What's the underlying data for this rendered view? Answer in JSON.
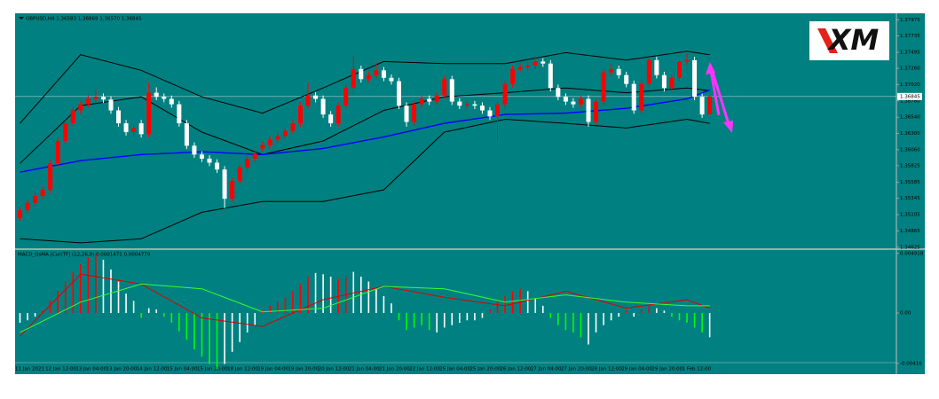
{
  "logo": "XM",
  "chart_data": [
    {
      "type": "candlestick",
      "title": "GBPUSD,H4  1.36583 1.36869 1.36570 1.36845",
      "categories": [
        "11 Jan 2021",
        null,
        null,
        null,
        "12 Jan 12:00",
        null,
        null,
        null,
        "13 Jan 04:00",
        null,
        null,
        null,
        "13 Jan 20:00",
        null,
        null,
        null,
        "14 Jan 12:00",
        null,
        null,
        null,
        "15 Jan 04:00",
        null,
        null,
        null,
        "15 Jan 20:00",
        null,
        null,
        null,
        "18 Jan 12:00",
        null,
        null,
        null,
        "19 Jan 04:00",
        null,
        null,
        null,
        "19 Jan 20:00",
        null,
        null,
        null,
        "20 Jan 12:00",
        null,
        null,
        null,
        "21 Jan 04:00",
        null,
        null,
        null,
        "21 Jan 20:00",
        null,
        null,
        null,
        "22 Jan 12:00",
        null,
        null,
        null,
        "25 Jan 04:00",
        null,
        null,
        null,
        "25 Jan 20:00",
        null,
        null,
        null,
        "26 Jan 12:00",
        null,
        null,
        null,
        "27 Jan 04:00",
        null,
        null,
        null,
        "27 Jan 20:00",
        null,
        null,
        null,
        "28 Jan 12:00",
        null,
        null,
        null,
        "29 Jan 04:00",
        null,
        null,
        null,
        "29 Jan 20:00",
        null,
        null,
        null,
        "1 Feb 12:00",
        null,
        null,
        null
      ],
      "ohlc": [
        [
          1.3505,
          1.3522,
          1.35,
          1.3517
        ],
        [
          1.3517,
          1.3533,
          1.3512,
          1.3528
        ],
        [
          1.3528,
          1.3543,
          1.3523,
          1.3538
        ],
        [
          1.3538,
          1.3552,
          1.3533,
          1.3547
        ],
        [
          1.3547,
          1.3591,
          1.3542,
          1.3586
        ],
        [
          1.3586,
          1.3624,
          1.3581,
          1.3619
        ],
        [
          1.3619,
          1.365,
          1.3614,
          1.3645
        ],
        [
          1.3645,
          1.3669,
          1.364,
          1.3664
        ],
        [
          1.3664,
          1.3678,
          1.3659,
          1.3673
        ],
        [
          1.3673,
          1.3686,
          1.3668,
          1.3681
        ],
        [
          1.3681,
          1.3695,
          1.3676,
          1.3684
        ],
        [
          1.3684,
          1.3689,
          1.3675,
          1.368
        ],
        [
          1.368,
          1.3685,
          1.3659,
          1.3664
        ],
        [
          1.3664,
          1.3669,
          1.364,
          1.3645
        ],
        [
          1.3645,
          1.365,
          1.3627,
          1.3632
        ],
        [
          1.3632,
          1.3643,
          1.3627,
          1.3638
        ],
        [
          1.3645,
          1.365,
          1.3624,
          1.3629
        ],
        [
          1.3629,
          1.3705,
          1.3624,
          1.369
        ],
        [
          1.369,
          1.3698,
          1.3679,
          1.3684
        ],
        [
          1.3684,
          1.3689,
          1.3676,
          1.3681
        ],
        [
          1.3681,
          1.3686,
          1.3668,
          1.3673
        ],
        [
          1.3673,
          1.3678,
          1.364,
          1.3645
        ],
        [
          1.3645,
          1.365,
          1.3607,
          1.3612
        ],
        [
          1.3612,
          1.3617,
          1.3594,
          1.3599
        ],
        [
          1.3599,
          1.3604,
          1.3588,
          1.3593
        ],
        [
          1.3593,
          1.3598,
          1.3582,
          1.3587
        ],
        [
          1.3587,
          1.3592,
          1.3572,
          1.3577
        ],
        [
          1.3577,
          1.3582,
          1.352,
          1.3534
        ],
        [
          1.3534,
          1.3565,
          1.3529,
          1.356
        ],
        [
          1.356,
          1.3585,
          1.3555,
          1.358
        ],
        [
          1.358,
          1.3598,
          1.3575,
          1.3593
        ],
        [
          1.3593,
          1.3605,
          1.3588,
          1.36
        ],
        [
          1.3608,
          1.3618,
          1.3603,
          1.3613
        ],
        [
          1.3613,
          1.3626,
          1.3608,
          1.3621
        ],
        [
          1.3621,
          1.3631,
          1.3616,
          1.3626
        ],
        [
          1.3626,
          1.3639,
          1.3621,
          1.3634
        ],
        [
          1.3634,
          1.365,
          1.3629,
          1.3645
        ],
        [
          1.3645,
          1.3676,
          1.364,
          1.3671
        ],
        [
          1.3671,
          1.3705,
          1.3666,
          1.3686
        ],
        [
          1.3686,
          1.3691,
          1.3676,
          1.3681
        ],
        [
          1.3681,
          1.3686,
          1.3653,
          1.3658
        ],
        [
          1.3658,
          1.3663,
          1.364,
          1.3645
        ],
        [
          1.3645,
          1.3676,
          1.364,
          1.3671
        ],
        [
          1.3671,
          1.3702,
          1.3666,
          1.3697
        ],
        [
          1.3697,
          1.3745,
          1.3692,
          1.3725
        ],
        [
          1.3725,
          1.373,
          1.3705,
          1.371
        ],
        [
          1.371,
          1.3721,
          1.3705,
          1.3716
        ],
        [
          1.3716,
          1.3735,
          1.3711,
          1.3723
        ],
        [
          1.3723,
          1.3728,
          1.3707,
          1.3712
        ],
        [
          1.3712,
          1.3717,
          1.3702,
          1.3707
        ],
        [
          1.3707,
          1.3712,
          1.3666,
          1.3671
        ],
        [
          1.3671,
          1.3676,
          1.364,
          1.3647
        ],
        [
          1.3647,
          1.3678,
          1.3642,
          1.3673
        ],
        [
          1.3673,
          1.3686,
          1.3668,
          1.3681
        ],
        [
          1.3681,
          1.3686,
          1.3672,
          1.3677
        ],
        [
          1.3677,
          1.3691,
          1.3672,
          1.3686
        ],
        [
          1.3686,
          1.3715,
          1.3681,
          1.371
        ],
        [
          1.371,
          1.3715,
          1.3672,
          1.3677
        ],
        [
          1.3677,
          1.3682,
          1.3666,
          1.3671
        ],
        [
          1.3671,
          1.3678,
          1.3666,
          1.3673
        ],
        [
          1.3673,
          1.3678,
          1.3666,
          1.3671
        ],
        [
          1.3671,
          1.3676,
          1.3659,
          1.3664
        ],
        [
          1.3664,
          1.3669,
          1.365,
          1.3655
        ],
        [
          1.3655,
          1.3678,
          1.362,
          1.3673
        ],
        [
          1.3673,
          1.3708,
          1.3668,
          1.3703
        ],
        [
          1.3703,
          1.373,
          1.3698,
          1.3725
        ],
        [
          1.3725,
          1.3733,
          1.372,
          1.3728
        ],
        [
          1.3728,
          1.3735,
          1.3723,
          1.373
        ],
        [
          1.373,
          1.3745,
          1.3725,
          1.3736
        ],
        [
          1.3736,
          1.3741,
          1.3728,
          1.3733
        ],
        [
          1.3733,
          1.3738,
          1.3692,
          1.3697
        ],
        [
          1.3697,
          1.3702,
          1.3679,
          1.3684
        ],
        [
          1.3684,
          1.3689,
          1.3672,
          1.3677
        ],
        [
          1.3677,
          1.3682,
          1.3668,
          1.3673
        ],
        [
          1.3673,
          1.3686,
          1.3668,
          1.3681
        ],
        [
          1.3681,
          1.3686,
          1.364,
          1.3647
        ],
        [
          1.3647,
          1.3682,
          1.3642,
          1.3677
        ],
        [
          1.3677,
          1.3725,
          1.3672,
          1.372
        ],
        [
          1.372,
          1.3733,
          1.3715,
          1.3725
        ],
        [
          1.3725,
          1.373,
          1.3711,
          1.3716
        ],
        [
          1.3716,
          1.3721,
          1.3698,
          1.3703
        ],
        [
          1.3703,
          1.3708,
          1.3659,
          1.3664
        ],
        [
          1.3664,
          1.3708,
          1.3659,
          1.3703
        ],
        [
          1.3703,
          1.3743,
          1.3698,
          1.3738
        ],
        [
          1.3738,
          1.3743,
          1.3711,
          1.3716
        ],
        [
          1.3716,
          1.3721,
          1.3692,
          1.3697
        ],
        [
          1.3697,
          1.3717,
          1.3692,
          1.3712
        ],
        [
          1.3712,
          1.3741,
          1.3707,
          1.3736
        ],
        [
          1.3736,
          1.3748,
          1.3731,
          1.3738
        ],
        [
          1.3738,
          1.3743,
          1.3679,
          1.3684
        ],
        [
          1.3684,
          1.3689,
          1.3653,
          1.3658
        ],
        [
          1.36583,
          1.36869,
          1.3657,
          1.36845
        ]
      ],
      "up_color": "#ff0000",
      "down_color": "#ffffff",
      "lines": [
        {
          "color": "#000000",
          "x": [
            0,
            8,
            16,
            24,
            32,
            40,
            48,
            56,
            64,
            72,
            80,
            88,
            91
          ],
          "values": [
            1.3645,
            1.3746,
            1.3723,
            1.3684,
            1.366,
            1.3697,
            1.3736,
            1.3733,
            1.3733,
            1.3749,
            1.3738,
            1.3751,
            1.3746
          ]
        },
        {
          "color": "#000000",
          "x": [
            0,
            8,
            16,
            24,
            32,
            40,
            48,
            56,
            64,
            72,
            80,
            88,
            91
          ],
          "values": [
            1.3586,
            1.3671,
            1.3684,
            1.3632,
            1.3599,
            1.3619,
            1.3664,
            1.3684,
            1.369,
            1.3697,
            1.369,
            1.3697,
            1.3693
          ]
        },
        {
          "color": "#000000",
          "x": [
            0,
            8,
            16,
            24,
            32,
            40,
            48,
            56,
            64,
            72,
            80,
            88,
            91
          ],
          "values": [
            1.3475,
            1.3469,
            1.3475,
            1.3514,
            1.353,
            1.353,
            1.3547,
            1.3632,
            1.3651,
            1.3645,
            1.3638,
            1.3651,
            1.3645
          ]
        },
        {
          "color": "#0000ff",
          "x": [
            0,
            8,
            16,
            24,
            32,
            40,
            48,
            56,
            64,
            72,
            80,
            88,
            91
          ],
          "values": [
            1.3573,
            1.359,
            1.3599,
            1.3603,
            1.3599,
            1.3608,
            1.3625,
            1.3645,
            1.3658,
            1.366,
            1.3667,
            1.3681,
            1.3694
          ]
        }
      ],
      "ylim": [
        1.3461,
        1.3807
      ],
      "yticks": [
        1.37975,
        1.37735,
        1.37495,
        {
          "value": 1.3726,
          "label": "1.37260"
        },
        {
          "value": 1.3702,
          "label": "1.37020"
        },
        {
          "value": 1.3678,
          "label": "1.36780"
        },
        {
          "value": 1.3654,
          "label": "1.36540"
        },
        {
          "value": 1.363,
          "label": "1.36300"
        },
        {
          "value": 1.3606,
          "label": "1.36060"
        },
        1.35825,
        1.35585,
        1.35345,
        1.35105,
        1.34865,
        1.34625
      ]
    },
    {
      "type": "macd",
      "title": "MACD_OsMA [CurrTF] (12,26,9) 0.0001471 0.0004779",
      "values": [
        -0.0008,
        -0.0006,
        -0.0003,
        0.0002,
        0.001,
        0.0018,
        0.0026,
        0.0034,
        0.004,
        0.0046,
        0.0049,
        0.0044,
        0.0036,
        0.0026,
        0.0016,
        0.001,
        -0.0004,
        0.0004,
        0.0003,
        -0.0003,
        -0.0008,
        -0.0015,
        -0.0022,
        -0.003,
        -0.0036,
        -0.0042,
        -0.0046,
        -0.0042,
        -0.0032,
        -0.0024,
        -0.0016,
        -0.001,
        0.0002,
        0.0006,
        0.0009,
        0.0013,
        0.0018,
        0.0024,
        0.003,
        0.0033,
        0.0032,
        0.003,
        0.0028,
        0.003,
        0.0034,
        0.003,
        0.0026,
        0.002,
        0.0014,
        0.0008,
        -0.0006,
        -0.0014,
        -0.0012,
        -0.001,
        -0.0014,
        -0.0016,
        -0.0012,
        -0.001,
        -0.0008,
        -0.0006,
        -0.0006,
        -0.0004,
        0.0003,
        0.001,
        0.0014,
        0.0018,
        0.002,
        0.0018,
        0.0012,
        0.0006,
        -0.0004,
        -0.001,
        -0.0014,
        -0.0016,
        -0.002,
        -0.0026,
        -0.0016,
        -0.001,
        -0.0006,
        -0.0003,
        0.0002,
        -0.0003,
        0.0003,
        0.0006,
        0.0004,
        0.0002,
        -0.0003,
        -0.0006,
        -0.0008,
        -0.0012,
        -0.0016,
        -0.002
      ],
      "colors": [
        "white",
        "white",
        "white",
        "red",
        "red",
        "red",
        "red",
        "red",
        "red",
        "red",
        "red",
        "white",
        "white",
        "white",
        "white",
        "white",
        "lime",
        "white",
        "white",
        "lime",
        "lime",
        "lime",
        "lime",
        "lime",
        "lime",
        "lime",
        "lime",
        "white",
        "white",
        "white",
        "white",
        "white",
        "red",
        "red",
        "red",
        "red",
        "red",
        "red",
        "red",
        "white",
        "white",
        "white",
        "red",
        "red",
        "white",
        "white",
        "white",
        "white",
        "white",
        "white",
        "lime",
        "lime",
        "lime",
        "lime",
        "lime",
        "white",
        "white",
        "white",
        "white",
        "white",
        "white",
        "white",
        "red",
        "red",
        "red",
        "red",
        "red",
        "white",
        "white",
        "white",
        "lime",
        "lime",
        "lime",
        "lime",
        "lime",
        "white",
        "white",
        "white",
        "white",
        "white",
        "red",
        "white",
        "red",
        "red",
        "white",
        "white",
        "lime",
        "lime",
        "lime",
        "lime",
        "lime",
        "white"
      ],
      "lines": [
        {
          "color": "#e00000",
          "x": [
            0,
            8,
            16,
            24,
            32,
            40,
            48,
            56,
            64,
            72,
            80,
            88,
            91
          ],
          "values": [
            -0.0019,
            0.0032,
            0.0024,
            -0.0004,
            -0.0011,
            0.0011,
            0.0022,
            0.0013,
            0.0006,
            0.0018,
            0.0004,
            0.0011,
            0.0004
          ]
        },
        {
          "color": "#33ff33",
          "x": [
            0,
            8,
            16,
            24,
            32,
            40,
            48,
            56,
            64,
            72,
            80,
            88,
            91
          ],
          "values": [
            -0.0016,
            0.0009,
            0.0024,
            0.002,
            0.0001,
            0.0004,
            0.0022,
            0.002,
            0.0009,
            0.0015,
            0.0009,
            0.0006,
            0.0006
          ]
        }
      ],
      "ylim": [
        -0.0049,
        0.0052
      ],
      "yticks": [
        0.004918,
        {
          "value": 0,
          "label": "0.00"
        },
        -0.00416
      ]
    }
  ]
}
